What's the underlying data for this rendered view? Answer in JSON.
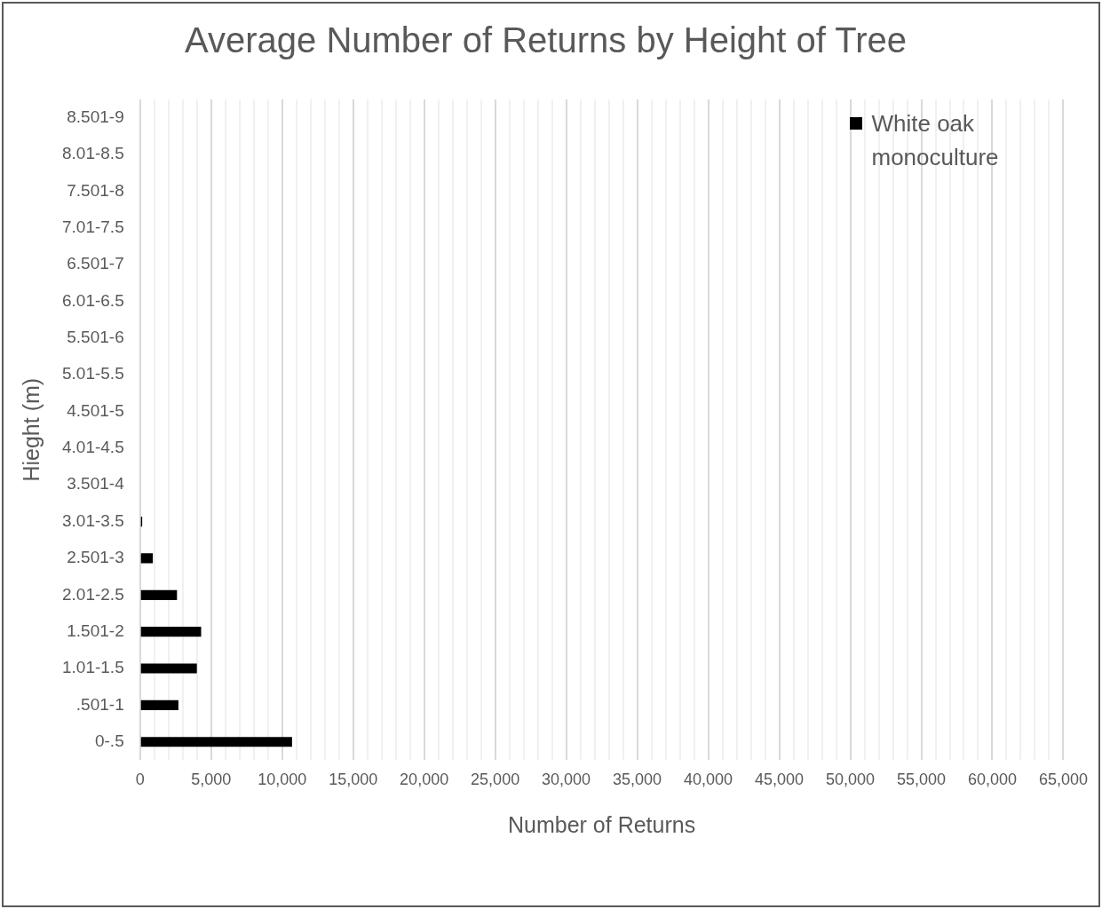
{
  "chart_data": {
    "type": "bar",
    "orientation": "horizontal",
    "title": "Average Number of Returns by Height of Tree",
    "xlabel": "Number of Returns",
    "ylabel": "Hieght (m)",
    "categories": [
      "8.501-9",
      "8.01-8.5",
      "7.501-8",
      "7.01-7.5",
      "6.501-7",
      "6.01-6.5",
      "5.501-6",
      "5.01-5.5",
      "4.501-5",
      "4.01-4.5",
      "3.501-4",
      "3.01-3.5",
      "2.501-3",
      "2.01-2.5",
      "1.501-2",
      "1.01-1.5",
      ".501-1",
      "0-.5"
    ],
    "series": [
      {
        "name": "White oak monoculture",
        "color": "#000000",
        "values": [
          0,
          0,
          0,
          0,
          0,
          0,
          0,
          0,
          0,
          0,
          0,
          150,
          900,
          2600,
          4300,
          4000,
          2700,
          10700
        ]
      }
    ],
    "xlim": [
      0,
      65000
    ],
    "xticks": [
      {
        "value": 0,
        "label": "0"
      },
      {
        "value": 1000,
        "label": null
      },
      {
        "value": 2000,
        "label": null
      },
      {
        "value": 3000,
        "label": null
      },
      {
        "value": 4000,
        "label": null
      },
      {
        "value": 5000,
        "label": "5,000"
      },
      {
        "value": 6000,
        "label": null
      },
      {
        "value": 7000,
        "label": null
      },
      {
        "value": 8000,
        "label": null
      },
      {
        "value": 9000,
        "label": null
      },
      {
        "value": 10000,
        "label": "10,000"
      },
      {
        "value": 11000,
        "label": null
      },
      {
        "value": 12000,
        "label": null
      },
      {
        "value": 13000,
        "label": null
      },
      {
        "value": 14000,
        "label": null
      },
      {
        "value": 15000,
        "label": "15,000"
      },
      {
        "value": 16000,
        "label": null
      },
      {
        "value": 17000,
        "label": null
      },
      {
        "value": 18000,
        "label": null
      },
      {
        "value": 19000,
        "label": null
      },
      {
        "value": 20000,
        "label": "20,000"
      },
      {
        "value": 21000,
        "label": null
      },
      {
        "value": 22000,
        "label": null
      },
      {
        "value": 23000,
        "label": null
      },
      {
        "value": 24000,
        "label": null
      },
      {
        "value": 25000,
        "label": "25,000"
      },
      {
        "value": 26000,
        "label": null
      },
      {
        "value": 27000,
        "label": null
      },
      {
        "value": 28000,
        "label": null
      },
      {
        "value": 29000,
        "label": null
      },
      {
        "value": 30000,
        "label": "30,000"
      },
      {
        "value": 31000,
        "label": null
      },
      {
        "value": 32000,
        "label": null
      },
      {
        "value": 33000,
        "label": null
      },
      {
        "value": 34000,
        "label": null
      },
      {
        "value": 35000,
        "label": "35,000"
      },
      {
        "value": 36000,
        "label": null
      },
      {
        "value": 37000,
        "label": null
      },
      {
        "value": 38000,
        "label": null
      },
      {
        "value": 39000,
        "label": null
      },
      {
        "value": 40000,
        "label": "40,000"
      },
      {
        "value": 41000,
        "label": null
      },
      {
        "value": 42000,
        "label": null
      },
      {
        "value": 43000,
        "label": null
      },
      {
        "value": 44000,
        "label": null
      },
      {
        "value": 45000,
        "label": "45,000"
      },
      {
        "value": 46000,
        "label": null
      },
      {
        "value": 47000,
        "label": null
      },
      {
        "value": 48000,
        "label": null
      },
      {
        "value": 49000,
        "label": null
      },
      {
        "value": 50000,
        "label": "50,000"
      },
      {
        "value": 51000,
        "label": null
      },
      {
        "value": 52000,
        "label": null
      },
      {
        "value": 53000,
        "label": null
      },
      {
        "value": 54000,
        "label": null
      },
      {
        "value": 55000,
        "label": "55,000"
      },
      {
        "value": 56000,
        "label": null
      },
      {
        "value": 57000,
        "label": null
      },
      {
        "value": 58000,
        "label": null
      },
      {
        "value": 59000,
        "label": null
      },
      {
        "value": 60000,
        "label": "60,000"
      },
      {
        "value": 61000,
        "label": null
      },
      {
        "value": 62000,
        "label": null
      },
      {
        "value": 63000,
        "label": null
      },
      {
        "value": 64000,
        "label": null
      },
      {
        "value": 65000,
        "label": "65,000"
      }
    ],
    "grid": "x",
    "legend": "top right"
  }
}
